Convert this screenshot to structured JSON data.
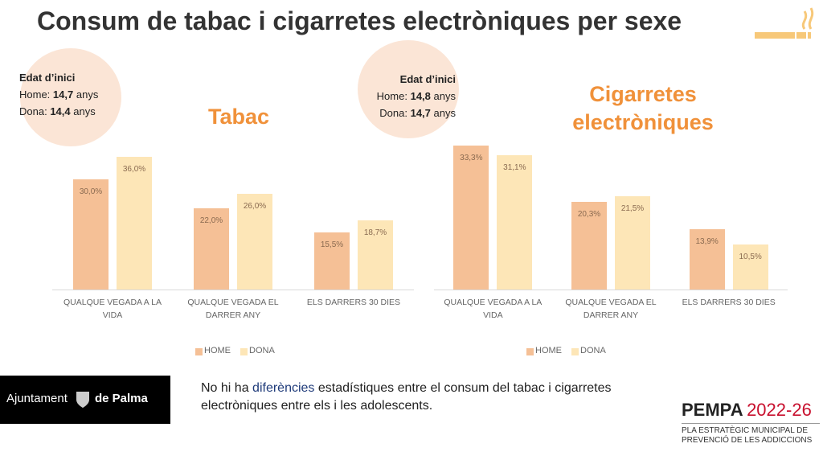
{
  "header": {
    "title": "Consum de tabac i cigarretes electròniques per sexe"
  },
  "age_boxes": [
    {
      "title": "Edat d’inici",
      "rows": [
        {
          "label": "Home:",
          "value": "14,7",
          "unit": "anys"
        },
        {
          "label": "Dona:",
          "value": "14,4",
          "unit": "anys"
        }
      ]
    },
    {
      "title": "Edat d’inici",
      "rows": [
        {
          "label": "Home:",
          "value": "14,8",
          "unit": "anys"
        },
        {
          "label": "Dona:",
          "value": "14,7",
          "unit": "anys"
        }
      ]
    }
  ],
  "chart_data": [
    {
      "type": "bar",
      "title": "Tabac",
      "legend": "bottom",
      "categories": [
        "QUALQUE VEGADA A LA VIDA",
        "QUALQUE VEGADA EL DARRER ANY",
        "ELS DARRERS 30 DIES"
      ],
      "series": [
        {
          "name": "HOME",
          "color": "#f5c096",
          "values": [
            30.0,
            22.0,
            15.5
          ],
          "value_labels": [
            "30,0%",
            "22,0%",
            "15,5%"
          ]
        },
        {
          "name": "DONA",
          "color": "#fde6b7",
          "values": [
            36.0,
            26.0,
            18.7
          ],
          "value_labels": [
            "36,0%",
            "26,0%",
            "18,7%"
          ]
        }
      ]
    },
    {
      "type": "bar",
      "title": "Cigarretes electròniques",
      "legend": "bottom",
      "categories": [
        "QUALQUE VEGADA A  LA  VIDA",
        "QUALQUE VEGADA EL DARRER ANY",
        "ELS DARRERS 30 DIES"
      ],
      "series": [
        {
          "name": "HOME",
          "color": "#f5c096",
          "values": [
            33.3,
            20.3,
            13.9
          ],
          "value_labels": [
            "33,3%",
            "20,3%",
            "13,9%"
          ]
        },
        {
          "name": "DONA",
          "color": "#fde6b7",
          "values": [
            31.1,
            21.5,
            10.5
          ],
          "value_labels": [
            "31,1%",
            "21,5%",
            "10,5%"
          ]
        }
      ]
    }
  ],
  "note": {
    "before": "No hi ha",
    "bold": "diferències",
    "after": "estadístiques entre el consum del tabac i cigarretes electròniques entre els i les adolescents."
  },
  "logos": {
    "city": {
      "left": "Ajuntament",
      "right": "de Palma"
    },
    "plan": {
      "name": "PEMPA",
      "years": "2022-26",
      "line1": "PLA ESTRATÈGIC MUNICIPAL DE",
      "line2": "PREVENCIÓ DE LES ADDICCIONS"
    }
  }
}
